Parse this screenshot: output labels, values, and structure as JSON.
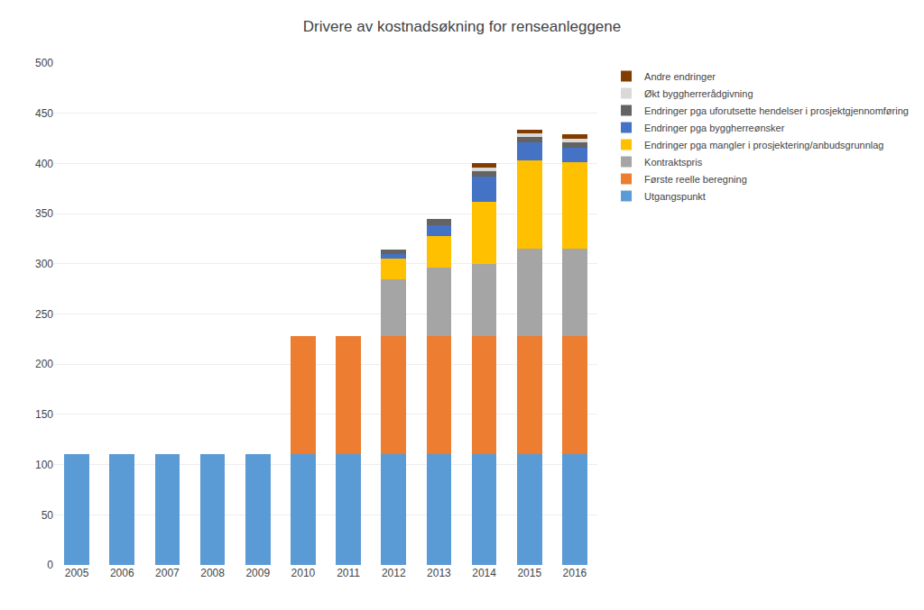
{
  "chart_data": {
    "type": "bar",
    "title": "Drivere av kostnadsøkning for renseanleggene",
    "categories": [
      "2005",
      "2006",
      "2007",
      "2008",
      "2009",
      "2010",
      "2011",
      "2012",
      "2013",
      "2014",
      "2015",
      "2016"
    ],
    "series": [
      {
        "name": "Utgangspunkt",
        "color": "#5B9BD5",
        "values": [
          110,
          110,
          110,
          110,
          110,
          110,
          110,
          110,
          110,
          110,
          110,
          110
        ]
      },
      {
        "name": "Første reelle beregning",
        "color": "#ED7D31",
        "values": [
          0,
          0,
          0,
          0,
          0,
          118,
          118,
          118,
          118,
          118,
          118,
          118
        ]
      },
      {
        "name": "Kontraktspris",
        "color": "#A5A5A5",
        "values": [
          0,
          0,
          0,
          0,
          0,
          0,
          0,
          57,
          68,
          72,
          87,
          87
        ]
      },
      {
        "name": "Endringer pga mangler i prosjektering/anbudsgrunnlag",
        "color": "#FFC000",
        "values": [
          0,
          0,
          0,
          0,
          0,
          0,
          0,
          20,
          32,
          62,
          88,
          86
        ]
      },
      {
        "name": "Endringer pga byggherreønsker",
        "color": "#4472C4",
        "values": [
          0,
          0,
          0,
          0,
          0,
          0,
          0,
          5,
          10,
          25,
          18,
          15
        ]
      },
      {
        "name": "Endringer pga uforutsette hendelser i prosjektgjennomføring",
        "color": "#636363",
        "values": [
          0,
          0,
          0,
          0,
          0,
          0,
          0,
          4,
          7,
          5,
          5,
          5
        ]
      },
      {
        "name": "Økt byggherrerådgivning",
        "color": "#D9D9D9",
        "values": [
          0,
          0,
          0,
          0,
          0,
          0,
          0,
          0,
          0,
          4,
          4,
          4
        ]
      },
      {
        "name": "Andre endringer",
        "color": "#833C00",
        "values": [
          0,
          0,
          0,
          0,
          0,
          0,
          0,
          0,
          0,
          4,
          4,
          4
        ]
      }
    ],
    "stacked": true,
    "ylim": [
      0,
      500
    ],
    "yticks": [
      0,
      50,
      100,
      150,
      200,
      250,
      300,
      350,
      400,
      450,
      500
    ],
    "grid": true,
    "legend": "upper right"
  }
}
